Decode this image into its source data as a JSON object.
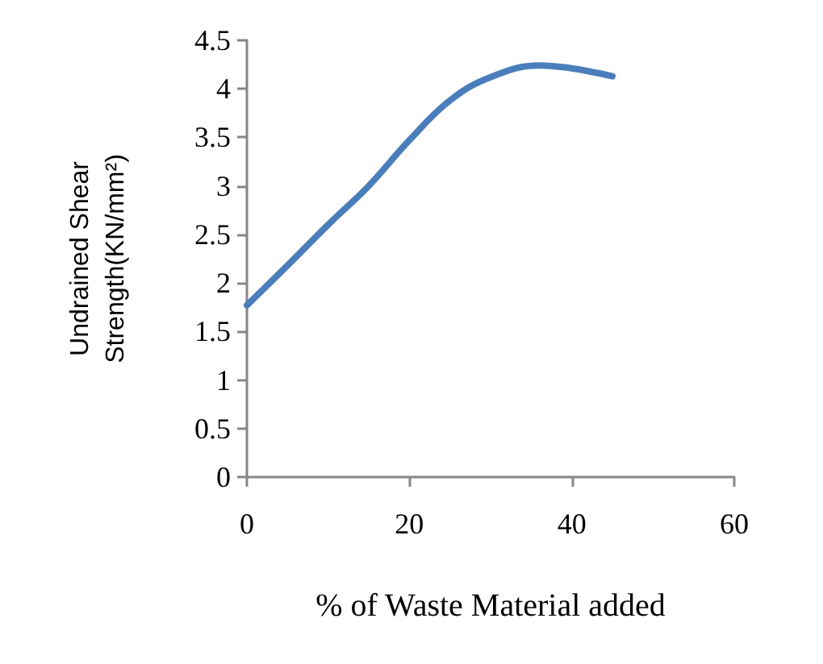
{
  "chart_data": {
    "type": "line",
    "xlabel": "% of Waste Material added",
    "ylabel": "Undrained Shear\nStrength(KN/mm²)",
    "x": [
      0,
      5,
      10,
      15,
      20,
      25,
      30,
      36,
      45
    ],
    "series": [
      {
        "color": "#4a7ebb",
        "values": [
          1.77,
          2.18,
          2.6,
          3.0,
          3.47,
          3.88,
          4.12,
          4.24,
          4.13
        ]
      }
    ],
    "xlim": [
      0,
      60
    ],
    "xticks": [
      0,
      20,
      40,
      60
    ],
    "ylim": [
      0,
      4.5
    ],
    "yticks": [
      0,
      0.5,
      1,
      1.5,
      2,
      2.5,
      3,
      3.5,
      4,
      4.5
    ],
    "grid": false,
    "marker": "none",
    "line_style": "solid"
  }
}
